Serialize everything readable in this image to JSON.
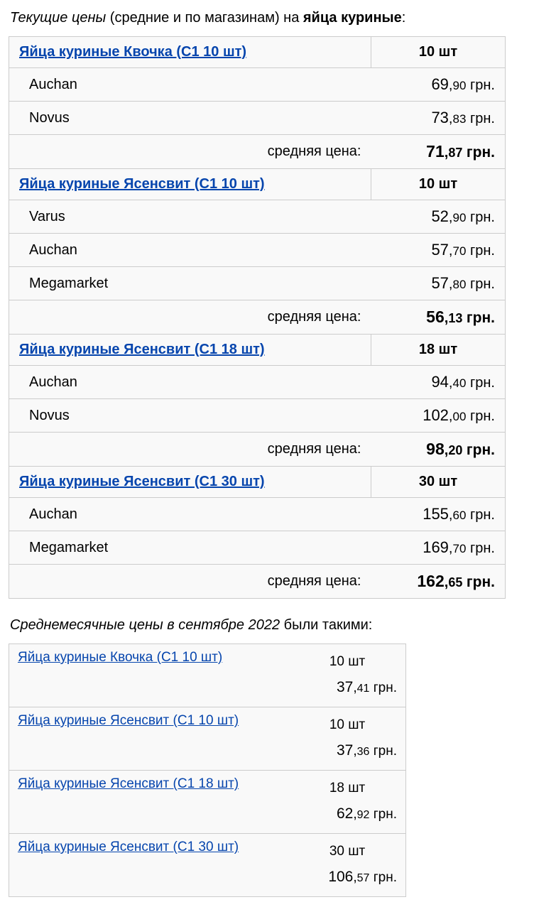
{
  "header": {
    "prefix_em": "Текущие цены",
    "mid": " (средние и по магазинам) на ",
    "bold": "яйца куриные",
    "suffix": ":"
  },
  "currency": "грн.",
  "avg_label": "средняя цена:",
  "products": [
    {
      "name": "Яйца куриные Квочка (С1 10 шт)",
      "qty": "10 шт",
      "stores": [
        {
          "name": "Auchan",
          "int": "69",
          "dec": "90"
        },
        {
          "name": "Novus",
          "int": "73",
          "dec": "83"
        }
      ],
      "avg": {
        "int": "71",
        "dec": "87"
      }
    },
    {
      "name": "Яйца куриные Ясенсвит (С1 10 шт)",
      "qty": "10 шт",
      "stores": [
        {
          "name": "Varus",
          "int": "52",
          "dec": "90"
        },
        {
          "name": "Auchan",
          "int": "57",
          "dec": "70"
        },
        {
          "name": "Megamarket",
          "int": "57",
          "dec": "80"
        }
      ],
      "avg": {
        "int": "56",
        "dec": "13"
      }
    },
    {
      "name": "Яйца куриные Ясенсвит (С1 18 шт)",
      "qty": "18 шт",
      "stores": [
        {
          "name": "Auchan",
          "int": "94",
          "dec": "40"
        },
        {
          "name": "Novus",
          "int": "102",
          "dec": "00"
        }
      ],
      "avg": {
        "int": "98",
        "dec": "20"
      }
    },
    {
      "name": "Яйца куриные Ясенсвит (С1 30 шт)",
      "qty": "30 шт",
      "stores": [
        {
          "name": "Auchan",
          "int": "155",
          "dec": "60"
        },
        {
          "name": "Megamarket",
          "int": "169",
          "dec": "70"
        }
      ],
      "avg": {
        "int": "162",
        "dec": "65"
      }
    }
  ],
  "header2": {
    "em": "Среднемесячные цены в сентябре 2022",
    "suffix": " были такими:"
  },
  "history": [
    {
      "name": "Яйца куриные Квочка (С1 10 шт)",
      "qty": "10 шт",
      "int": "37",
      "dec": "41"
    },
    {
      "name": "Яйца куриные Ясенсвит (С1 10 шт)",
      "qty": "10 шт",
      "int": "37",
      "dec": "36"
    },
    {
      "name": "Яйца куриные Ясенсвит (С1 18 шт)",
      "qty": "18 шт",
      "int": "62",
      "dec": "92"
    },
    {
      "name": "Яйца куриные Ясенсвит (С1 30 шт)",
      "qty": "30 шт",
      "int": "106",
      "dec": "57"
    }
  ]
}
